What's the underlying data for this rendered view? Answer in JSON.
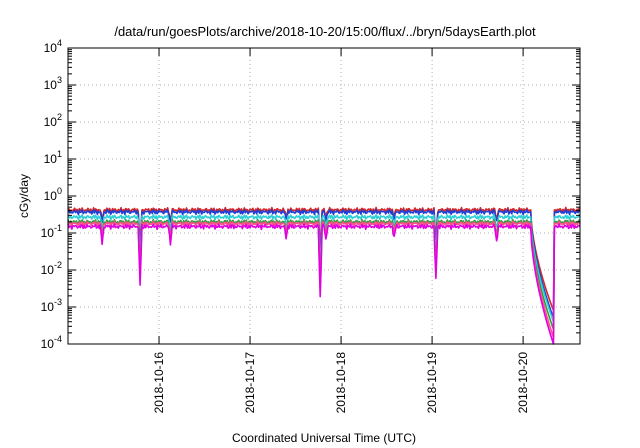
{
  "chart_data": {
    "type": "line",
    "title": "/data/run/goesPlots/archive/2018-10-20/15:00/flux/../bryn/5daysEarth.plot",
    "xlabel": "Coordinated Universal Time (UTC)",
    "ylabel": "cGy/day",
    "y_scale": "log",
    "ylim": [
      0.0001,
      10000
    ],
    "xlim": [
      "2018-10-15T00:00",
      "2018-10-20T15:00"
    ],
    "grid": true,
    "legend": "none",
    "y_ticks": [
      {
        "base": "10",
        "exp": "-4"
      },
      {
        "base": "10",
        "exp": "-3"
      },
      {
        "base": "10",
        "exp": "-2"
      },
      {
        "base": "10",
        "exp": "-1"
      },
      {
        "base": "10",
        "exp": "0"
      },
      {
        "base": "10",
        "exp": "1"
      },
      {
        "base": "10",
        "exp": "2"
      },
      {
        "base": "10",
        "exp": "3"
      },
      {
        "base": "10",
        "exp": "4"
      }
    ],
    "x_ticks": [
      "2018-10-16",
      "2018-10-17",
      "2018-10-18",
      "2018-10-19",
      "2018-10-20"
    ],
    "series": [
      {
        "color": "#d62728",
        "base_level": 0.42
      },
      {
        "color": "#1f3fd6",
        "base_level": 0.37
      },
      {
        "color": "#2ecfd6",
        "base_level": 0.27
      },
      {
        "color": "#2e9e3e",
        "base_level": 0.2
      },
      {
        "color": "#ff4f8a",
        "base_level": 0.18
      },
      {
        "color": "#e000e0",
        "base_level": 0.15
      }
    ],
    "dips": [
      {
        "time": "2018-10-15T09:00",
        "depth_factor": 0.35
      },
      {
        "time": "2018-10-15T19:00",
        "depth_factor": 0.025
      },
      {
        "time": "2018-10-16T03:00",
        "depth_factor": 0.35
      },
      {
        "time": "2018-10-17T09:30",
        "depth_factor": 0.5
      },
      {
        "time": "2018-10-17T18:30",
        "depth_factor": 0.012
      },
      {
        "time": "2018-10-17T20:00",
        "depth_factor": 0.45
      },
      {
        "time": "2018-10-18T14:00",
        "depth_factor": 0.5
      },
      {
        "time": "2018-10-19T01:00",
        "depth_factor": 0.035
      },
      {
        "time": "2018-10-19T17:00",
        "depth_factor": 0.4
      }
    ],
    "gap": {
      "start": "2018-10-20T02:00",
      "min_time": "2018-10-20T08:00",
      "end": "2018-10-20T08:30",
      "end_values": [
        0.0008,
        0.0005,
        0.0004,
        0.00025,
        0.00015,
        0.0001
      ]
    }
  }
}
